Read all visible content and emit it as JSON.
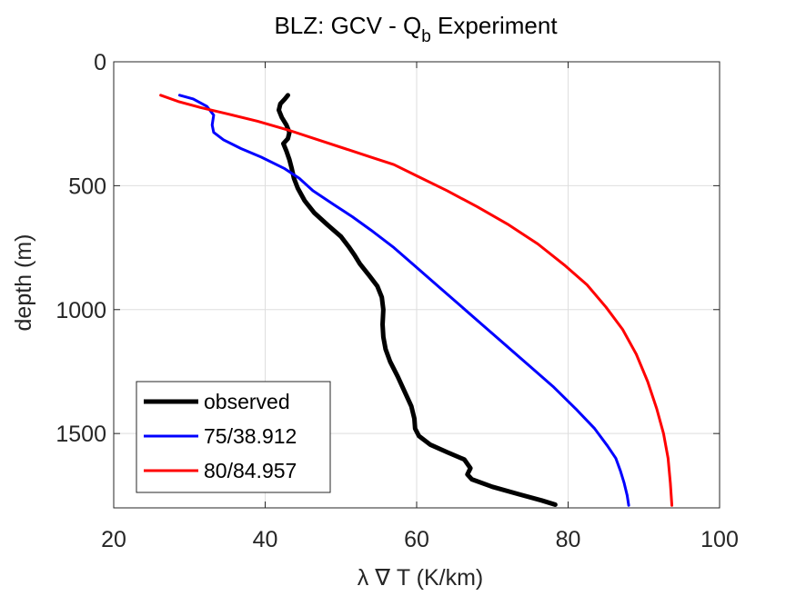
{
  "chart_data": {
    "type": "line",
    "title": "BLZ: GCV - Q",
    "title_subscript": "b",
    "title_suffix": " Experiment",
    "xlabel": "λ ∇ T (K/km)",
    "ylabel": "depth (m)",
    "xlim": [
      20,
      100
    ],
    "ylim": [
      0,
      1800
    ],
    "y_reversed": true,
    "xticks": [
      "20",
      "40",
      "60",
      "80",
      "100"
    ],
    "yticks": [
      "0",
      "500",
      "1000",
      "1500"
    ],
    "grid": true,
    "legend_position": "bottom-left",
    "series": [
      {
        "name": "observed",
        "color": "#000000",
        "width": "thick",
        "points": [
          [
            43.0,
            135
          ],
          [
            42.6,
            150
          ],
          [
            42.0,
            170
          ],
          [
            41.8,
            195
          ],
          [
            42.2,
            225
          ],
          [
            42.8,
            255
          ],
          [
            43.2,
            285
          ],
          [
            43.0,
            310
          ],
          [
            42.4,
            330
          ],
          [
            42.8,
            360
          ],
          [
            43.2,
            395
          ],
          [
            43.5,
            430
          ],
          [
            43.8,
            470
          ],
          [
            44.3,
            510
          ],
          [
            45.2,
            560
          ],
          [
            46.5,
            610
          ],
          [
            48.3,
            660
          ],
          [
            50.0,
            705
          ],
          [
            51.0,
            745
          ],
          [
            51.8,
            780
          ],
          [
            52.5,
            815
          ],
          [
            53.8,
            865
          ],
          [
            54.8,
            905
          ],
          [
            55.4,
            950
          ],
          [
            55.6,
            1000
          ],
          [
            55.5,
            1060
          ],
          [
            55.6,
            1110
          ],
          [
            55.9,
            1160
          ],
          [
            56.5,
            1210
          ],
          [
            57.5,
            1270
          ],
          [
            58.4,
            1330
          ],
          [
            59.3,
            1390
          ],
          [
            59.7,
            1440
          ],
          [
            59.8,
            1480
          ],
          [
            60.3,
            1510
          ],
          [
            61.8,
            1545
          ],
          [
            64.0,
            1575
          ],
          [
            66.3,
            1605
          ],
          [
            67.1,
            1640
          ],
          [
            66.7,
            1665
          ],
          [
            67.3,
            1685
          ],
          [
            70.0,
            1715
          ],
          [
            73.5,
            1745
          ],
          [
            76.5,
            1770
          ],
          [
            78.3,
            1787
          ]
        ]
      },
      {
        "name": "75/38.912",
        "color": "#0000ff",
        "width": "normal",
        "points": [
          [
            28.7,
            135
          ],
          [
            30.5,
            150
          ],
          [
            32.3,
            180
          ],
          [
            33.2,
            215
          ],
          [
            33.0,
            255
          ],
          [
            33.2,
            285
          ],
          [
            34.5,
            315
          ],
          [
            36.8,
            350
          ],
          [
            39.5,
            385
          ],
          [
            42.5,
            430
          ],
          [
            44.5,
            470
          ],
          [
            46.3,
            520
          ],
          [
            49.0,
            575
          ],
          [
            51.5,
            625
          ],
          [
            54.0,
            680
          ],
          [
            57.0,
            750
          ],
          [
            60.0,
            830
          ],
          [
            63.0,
            910
          ],
          [
            66.0,
            990
          ],
          [
            69.0,
            1070
          ],
          [
            72.0,
            1150
          ],
          [
            75.0,
            1230
          ],
          [
            78.0,
            1310
          ],
          [
            81.0,
            1400
          ],
          [
            83.5,
            1480
          ],
          [
            85.2,
            1550
          ],
          [
            86.3,
            1600
          ],
          [
            86.9,
            1650
          ],
          [
            87.4,
            1700
          ],
          [
            87.8,
            1750
          ],
          [
            88.0,
            1790
          ]
        ]
      },
      {
        "name": "80/84.957",
        "color": "#ff0000",
        "width": "normal",
        "points": [
          [
            26.2,
            135
          ],
          [
            28.5,
            160
          ],
          [
            31.5,
            185
          ],
          [
            35.0,
            210
          ],
          [
            39.0,
            240
          ],
          [
            43.0,
            275
          ],
          [
            47.0,
            315
          ],
          [
            51.0,
            355
          ],
          [
            54.0,
            385
          ],
          [
            57.0,
            415
          ],
          [
            60.0,
            460
          ],
          [
            64.0,
            520
          ],
          [
            68.0,
            585
          ],
          [
            72.0,
            655
          ],
          [
            76.0,
            735
          ],
          [
            79.5,
            820
          ],
          [
            82.5,
            900
          ],
          [
            85.0,
            990
          ],
          [
            87.2,
            1080
          ],
          [
            89.0,
            1180
          ],
          [
            90.5,
            1290
          ],
          [
            91.7,
            1400
          ],
          [
            92.6,
            1500
          ],
          [
            93.2,
            1600
          ],
          [
            93.5,
            1700
          ],
          [
            93.7,
            1790
          ]
        ]
      }
    ]
  }
}
